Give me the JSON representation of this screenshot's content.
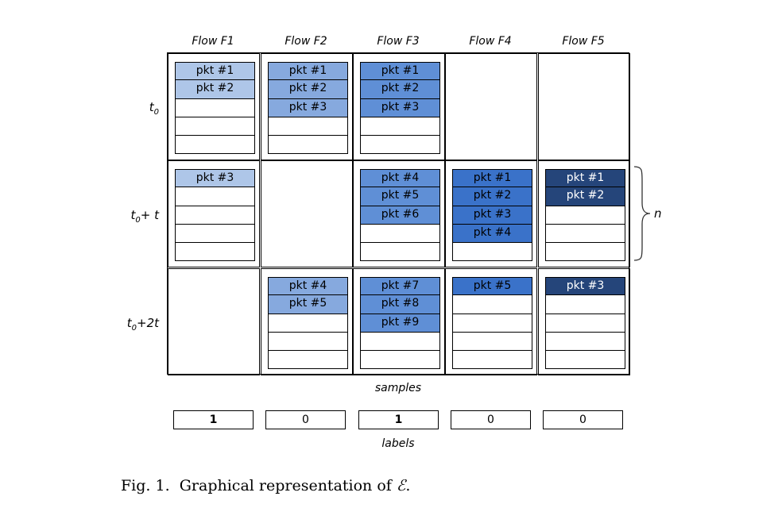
{
  "colors": {
    "flow1": "#aec6e8",
    "flow2": "#86a9de",
    "flow3": "#5f8fd6",
    "flow4": "#3a72c9",
    "flow5": "#25457a"
  },
  "flows": [
    "Flow F1",
    "Flow F2",
    "Flow F3",
    "Flow F4",
    "Flow F5"
  ],
  "rows": [
    {
      "base": "t",
      "sub": "0",
      "suffix": ""
    },
    {
      "base": "t",
      "sub": "0",
      "suffix": "+ t"
    },
    {
      "base": "t",
      "sub": "0",
      "suffix": "+2t"
    }
  ],
  "cells": [
    [
      {
        "packets": [
          "pkt #1",
          "pkt #2"
        ],
        "slots": 5
      },
      {
        "packets": [
          "pkt #1",
          "pkt #2",
          "pkt #3"
        ],
        "slots": 5
      },
      {
        "packets": [
          "pkt #1",
          "pkt #2",
          "pkt #3"
        ],
        "slots": 5
      },
      {
        "packets": [],
        "slots": 0
      },
      {
        "packets": [],
        "slots": 0
      }
    ],
    [
      {
        "packets": [
          "pkt #3"
        ],
        "slots": 5
      },
      {
        "packets": [],
        "slots": 0
      },
      {
        "packets": [
          "pkt #4",
          "pkt #5",
          "pkt #6"
        ],
        "slots": 5
      },
      {
        "packets": [
          "pkt #1",
          "pkt #2",
          "pkt #3",
          "pkt #4"
        ],
        "slots": 5
      },
      {
        "packets": [
          "pkt #1",
          "pkt #2"
        ],
        "slots": 5
      }
    ],
    [
      {
        "packets": [],
        "slots": 0
      },
      {
        "packets": [
          "pkt #4",
          "pkt #5"
        ],
        "slots": 5
      },
      {
        "packets": [
          "pkt #7",
          "pkt #8",
          "pkt #9"
        ],
        "slots": 5
      },
      {
        "packets": [
          "pkt #5"
        ],
        "slots": 5
      },
      {
        "packets": [
          "pkt #3"
        ],
        "slots": 5
      }
    ]
  ],
  "brace_label": "n",
  "samples_label": "samples",
  "labels_caption": "labels",
  "labels": [
    {
      "value": "1",
      "bold": true
    },
    {
      "value": "0",
      "bold": false
    },
    {
      "value": "1",
      "bold": true
    },
    {
      "value": "0",
      "bold": false
    },
    {
      "value": "0",
      "bold": false
    }
  ],
  "figure_caption": {
    "prefix": "Fig. 1.",
    "text": "Graphical representation of",
    "symbol": "ℰ",
    "end": "."
  }
}
